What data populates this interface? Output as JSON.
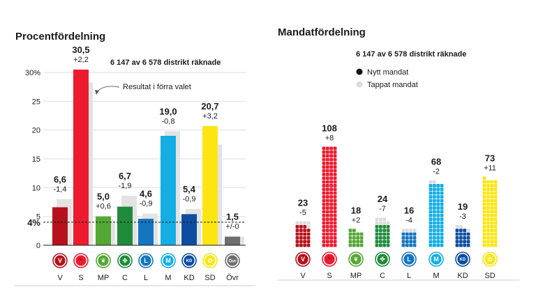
{
  "chart_data": [
    {
      "type": "bar",
      "title": "Procentfördelning",
      "subtitle": "6 147 av 6 578 distrikt räknade",
      "categories": [
        "V",
        "S",
        "MP",
        "C",
        "L",
        "M",
        "KD",
        "SD",
        "Övr"
      ],
      "series": [
        {
          "name": "Resultat",
          "values": [
            6.6,
            30.5,
            5.0,
            6.7,
            4.6,
            19.0,
            5.4,
            20.7,
            1.5
          ]
        },
        {
          "name": "Resultat i förra valet",
          "values": [
            8.0,
            28.3,
            4.4,
            8.6,
            5.5,
            19.8,
            6.3,
            17.5,
            1.5
          ]
        }
      ],
      "value_labels": [
        "6,6",
        "30,5",
        "5,0",
        "6,7",
        "4,6",
        "19,0",
        "5,4",
        "20,7",
        "1,5"
      ],
      "change_labels": [
        "-1,4",
        "+2,2",
        "+0,6",
        "-1,9",
        "-0,9",
        "-0,8",
        "-0,9",
        "+3,2",
        "+/-0"
      ],
      "ylim": [
        0,
        30
      ],
      "y_ticks": [
        0,
        5,
        10,
        15,
        20,
        25,
        30
      ],
      "y_tick_labels": [
        "0",
        "5",
        "10",
        "15",
        "20",
        "25",
        "30%"
      ],
      "threshold": {
        "value": 4,
        "label": "4%"
      },
      "annotation": "Resultat i förra valet"
    },
    {
      "type": "bar",
      "title": "Mandatfördelning",
      "subtitle": "6 147 av 6 578 distrikt räknade",
      "categories": [
        "V",
        "S",
        "MP",
        "C",
        "L",
        "M",
        "KD",
        "SD"
      ],
      "values": [
        23,
        108,
        18,
        24,
        16,
        68,
        19,
        73
      ],
      "gained": [
        0,
        8,
        2,
        0,
        0,
        0,
        0,
        11
      ],
      "lost": [
        5,
        0,
        0,
        7,
        4,
        2,
        3,
        0
      ],
      "change_labels": [
        "-5",
        "+8",
        "+2",
        "-7",
        "-4",
        "-2",
        "-3",
        "+11"
      ],
      "units_per_row": 4,
      "legend": [
        "Nytt mandat",
        "Tappat mandat"
      ]
    }
  ],
  "parties": {
    "colors": {
      "V": "#b5121b",
      "S": "#ed1b2f",
      "MP": "#53a833",
      "C": "#1f8b3b",
      "L": "#1476c0",
      "M": "#14aee5",
      "KD": "#0c4da2",
      "SD": "#fde511",
      "Övr": "#6e6e6e"
    },
    "prev_color": "#e3e3e3",
    "lost_color": "#dcdcdc",
    "logo_glyphs": {
      "V": "V",
      "S": "🌹",
      "MP": "❦",
      "C": "✤",
      "L": "L",
      "M": "M",
      "KD": "KD",
      "SD": "✿",
      "Övr": "Övr"
    }
  }
}
